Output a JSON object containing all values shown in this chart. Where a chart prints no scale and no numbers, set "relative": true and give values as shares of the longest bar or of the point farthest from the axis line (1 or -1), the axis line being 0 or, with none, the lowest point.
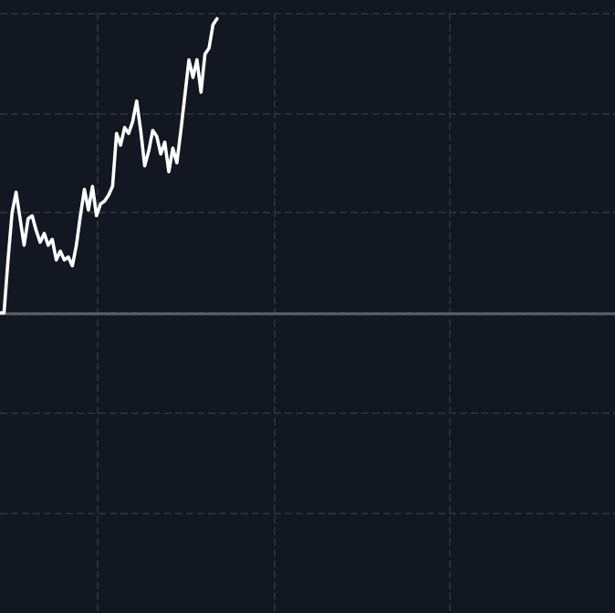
{
  "chart_data": {
    "type": "line",
    "relative": true,
    "grid": true,
    "line_style": "solid",
    "categories": [
      null,
      null,
      null,
      null,
      null,
      null,
      null,
      null,
      null,
      null,
      null,
      null,
      null,
      null,
      null,
      null,
      null,
      null,
      null,
      null,
      null,
      null,
      null,
      null,
      null,
      null,
      null,
      null,
      null,
      null,
      null,
      null,
      null,
      null,
      null,
      null,
      null,
      null,
      null,
      null,
      null,
      null,
      null,
      null,
      null,
      null,
      null,
      null,
      null,
      null,
      null,
      null,
      null,
      null,
      null,
      null,
      null,
      null,
      null,
      null,
      null,
      null,
      null,
      null,
      null,
      null,
      null,
      null,
      null,
      null,
      null,
      null,
      null,
      null,
      null,
      null,
      null,
      null,
      null,
      null,
      null,
      null,
      null,
      null,
      null,
      null,
      null,
      null,
      null,
      null,
      null,
      null,
      null,
      null,
      null,
      null,
      null,
      null,
      null,
      null,
      null,
      null,
      null,
      null,
      null,
      null,
      null,
      null,
      null,
      null,
      null,
      null,
      null,
      null,
      null,
      null,
      null,
      null,
      null,
      null,
      null,
      null,
      null,
      null,
      null,
      null,
      null,
      null,
      null,
      null,
      null,
      null,
      null,
      null,
      null,
      null,
      null,
      null,
      null,
      null,
      null,
      null,
      null,
      null,
      null,
      null,
      null,
      null,
      null,
      null,
      null,
      null,
      null,
      null
    ],
    "series": [
      {
        "color": "#ffffff",
        "values": [
          0,
          0,
          0.18,
          0.34,
          0.41,
          0.32,
          0.23,
          0.32,
          0.33,
          0.28,
          0.24,
          0.27,
          0.23,
          0.25,
          0.18,
          0.21,
          0.18,
          0.19,
          0.16,
          0.23,
          0.33,
          0.42,
          0.35,
          0.43,
          0.33,
          0.37,
          0.38,
          0.4,
          0.43,
          0.61,
          0.57,
          0.63,
          0.61,
          0.65,
          0.72,
          0.62,
          0.5,
          0.55,
          0.62,
          0.6,
          0.54,
          0.58,
          0.48,
          0.56,
          0.51,
          0.62,
          0.74,
          0.86,
          0.8,
          0.86,
          0.75,
          0.88,
          0.9,
          0.98,
          1,
          null,
          null,
          null,
          null,
          null,
          null,
          null,
          null,
          null,
          null,
          null,
          null,
          null,
          null,
          null,
          null,
          null,
          null,
          null,
          null,
          null,
          null,
          null,
          null,
          null,
          null,
          null,
          null,
          null,
          null,
          null,
          null,
          null,
          null,
          null,
          null,
          null,
          null,
          null,
          null,
          null,
          null,
          null,
          null,
          null,
          null,
          null,
          null,
          null,
          null,
          null,
          null,
          null,
          null,
          null,
          null,
          null,
          null,
          null,
          null,
          null,
          null,
          null,
          null,
          null,
          null,
          null,
          null,
          null,
          null,
          null,
          null,
          null,
          null,
          null,
          null,
          null,
          null,
          null,
          null,
          null,
          null,
          null,
          null,
          null,
          null,
          null,
          null,
          null,
          null,
          null,
          null,
          null,
          null,
          null,
          null,
          null,
          null,
          null
        ]
      }
    ]
  }
}
